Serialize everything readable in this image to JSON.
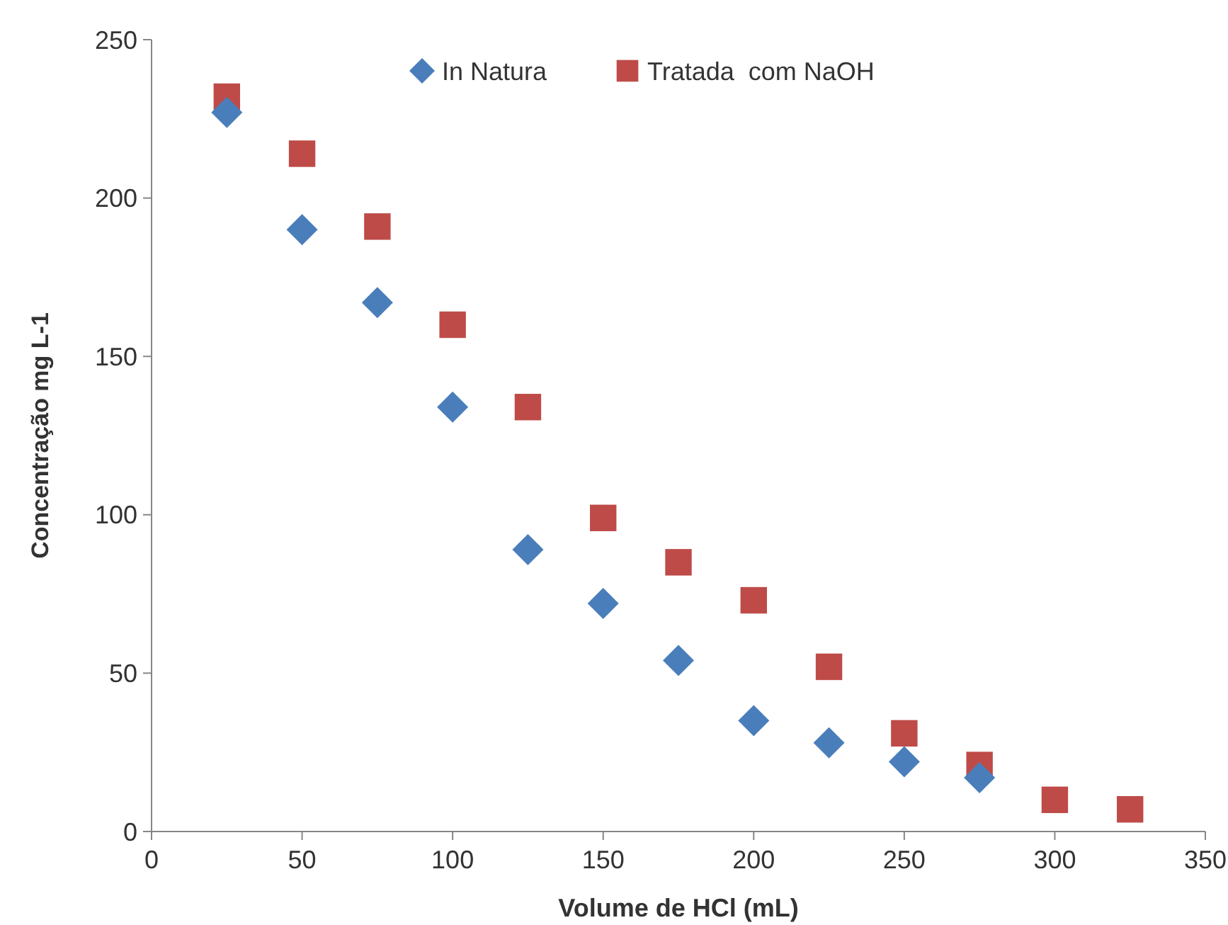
{
  "chart_data": {
    "type": "scatter",
    "xlabel": "Volume de HCl (mL)",
    "ylabel": "Concentração mg L-1",
    "xlim": [
      0,
      350
    ],
    "xticks": [
      0,
      50,
      100,
      150,
      200,
      250,
      300,
      350
    ],
    "ylim": [
      0,
      250
    ],
    "yticks": [
      0,
      50,
      100,
      150,
      200,
      250
    ],
    "grid": false,
    "legend": "top",
    "series": [
      {
        "name": "In Natura",
        "color": "#4a7ebb",
        "marker": "diamond",
        "x": [
          25,
          50,
          75,
          100,
          125,
          150,
          175,
          200,
          225,
          250,
          275
        ],
        "values": [
          227,
          190,
          167,
          134,
          89,
          72,
          54,
          35,
          28,
          22,
          17
        ]
      },
      {
        "name": "Tratada  com NaOH",
        "color": "#be4b48",
        "marker": "square",
        "x": [
          25,
          50,
          75,
          100,
          125,
          150,
          175,
          200,
          225,
          250,
          275,
          300,
          325
        ],
        "values": [
          232,
          214,
          191,
          160,
          134,
          99,
          85,
          73,
          52,
          31,
          21,
          10,
          7
        ]
      }
    ]
  }
}
